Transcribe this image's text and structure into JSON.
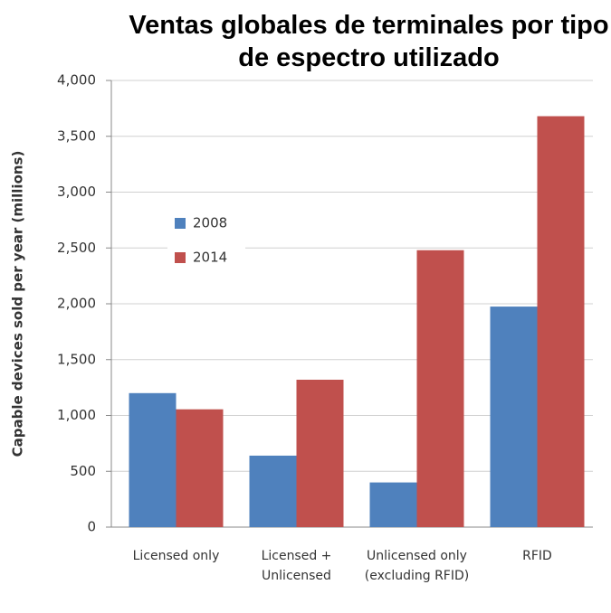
{
  "chart_data": {
    "type": "bar",
    "title": "Ventas globales de terminales por tipo de espectro utilizado",
    "y_label": "Capable devices sold per year (millions)",
    "categories": [
      "Licensed only",
      "Licensed + Unlicensed",
      "Unlicensed only (excluding RFID)",
      "RFID"
    ],
    "series": [
      {
        "name": "2008",
        "color": "#4f81bd",
        "values": [
          1200,
          640,
          400,
          1975
        ]
      },
      {
        "name": "2014",
        "color": "#c0504d",
        "values": [
          1055,
          1320,
          2480,
          3680
        ]
      }
    ],
    "ylim": [
      0,
      4000
    ],
    "yticks": [
      0,
      500,
      {
        "value": 1000,
        "label": "1,000"
      },
      {
        "value": 1500,
        "label": "1,500"
      },
      {
        "value": 2000,
        "label": "2,000"
      },
      {
        "value": 2500,
        "label": "2,500"
      },
      {
        "value": 3000,
        "label": "3,000"
      },
      {
        "value": 3500,
        "label": "3,500"
      },
      {
        "value": 4000,
        "label": "4,000"
      }
    ],
    "grid": true,
    "legend": "upper-left"
  }
}
